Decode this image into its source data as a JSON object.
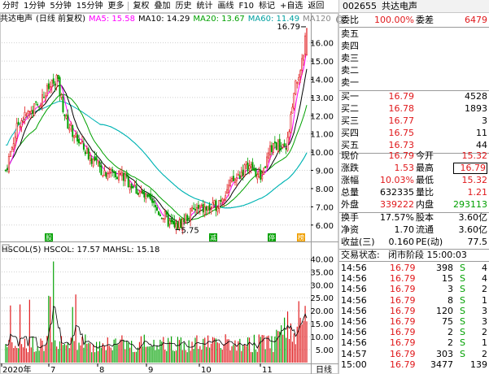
{
  "toolbar": {
    "items": [
      "分时",
      "1分钟",
      "5分钟",
      "15分钟",
      "更多",
      "复权",
      "叠加",
      "历史",
      "统计",
      "画线",
      "F10",
      "标记",
      "+自选",
      "返回"
    ]
  },
  "legend": {
    "stock_name": "共达电声",
    "mode": "(日线 前复权)",
    "ma5": "MA5: 15.58",
    "ma10": "MA10: 14.29",
    "ma20": "MA20: 13.67",
    "ma60": "MA60: 11.49",
    "ma120": "MA120",
    "ma120_icon": "circle-icon"
  },
  "sublegend": {
    "hscol5": "HSCOL(5)",
    "hscol": "HSCOL: 17.57",
    "mahsl": "MAHSL: 15.18"
  },
  "colors": {
    "ma5": "#ff00ff",
    "ma10": "#000000",
    "ma20": "#00a000",
    "ma60": "#00b4b4",
    "up": "#e0181b",
    "down": "#00a000",
    "markers": "#00a000"
  },
  "price_axis": [
    "16.00",
    "15.00",
    "14.00",
    "13.00",
    "12.00",
    "11.00",
    "10.00",
    "9.00",
    "8.00",
    "7.00",
    "6.00"
  ],
  "volume_axis": [
    "40.00",
    "35.00",
    "30.00",
    "25.00",
    "20.00",
    "15.00",
    "10.00",
    "5.00"
  ],
  "annotations": {
    "high": "16.79",
    "low": "5.75"
  },
  "markers": [
    "股",
    "减",
    "停",
    "榜"
  ],
  "date_axis": {
    "labels": [
      "2020年",
      "7",
      "8",
      "9",
      "10",
      "11"
    ],
    "period": "日线"
  },
  "quote": {
    "code": "002655",
    "name": "共达电声",
    "weibi_label": "委比",
    "weibi": "100.00%",
    "weicha_label": "委差",
    "weicha": "6479",
    "sells": [
      {
        "label": "卖五",
        "price": "",
        "vol": ""
      },
      {
        "label": "卖四",
        "price": "",
        "vol": ""
      },
      {
        "label": "卖三",
        "price": "",
        "vol": ""
      },
      {
        "label": "卖二",
        "price": "",
        "vol": ""
      },
      {
        "label": "卖一",
        "price": "",
        "vol": ""
      }
    ],
    "buys": [
      {
        "label": "买一",
        "price": "16.79",
        "vol": "4528"
      },
      {
        "label": "买二",
        "price": "16.78",
        "vol": "1893"
      },
      {
        "label": "买三",
        "price": "16.77",
        "vol": "3"
      },
      {
        "label": "买四",
        "price": "16.75",
        "vol": "11"
      },
      {
        "label": "买五",
        "price": "16.73",
        "vol": "44"
      }
    ],
    "stats": [
      {
        "l1": "现价",
        "v1": "16.79",
        "c1": "red",
        "l2": "今开",
        "v2": "15.32",
        "c2": "red"
      },
      {
        "l1": "涨跌",
        "v1": "1.53",
        "c1": "red",
        "l2": "最高",
        "v2": "16.79",
        "c2": "red"
      },
      {
        "l1": "涨幅",
        "v1": "10.03%",
        "c1": "red",
        "l2": "最低",
        "v2": "15.32",
        "c2": "red"
      },
      {
        "l1": "总量",
        "v1": "632335",
        "c1": "black",
        "l2": "量比",
        "v2": "1.21",
        "c2": "red"
      },
      {
        "l1": "外盘",
        "v1": "339222",
        "c1": "red",
        "l2": "内盘",
        "v2": "293113",
        "c2": "green"
      }
    ],
    "stats2": [
      {
        "l1": "换手",
        "v1": "17.57%",
        "l2": "股本",
        "v2": "3.60亿"
      },
      {
        "l1": "净资",
        "v1": "1.70",
        "l2": "流通",
        "v2": "3.60亿"
      },
      {
        "l1": "收益(三)",
        "v1": "0.160",
        "l2": "PE(动)",
        "v2": "77.5"
      }
    ],
    "status_label": "交易状态:",
    "status": "闭市阶段 15:00:03",
    "ticks": [
      {
        "time": "14:56",
        "price": "16.79",
        "vol": "398",
        "side": "S",
        "n": "4"
      },
      {
        "time": "14:56",
        "price": "16.79",
        "vol": "15",
        "side": "S",
        "n": "4"
      },
      {
        "time": "14:56",
        "price": "16.79",
        "vol": "3",
        "side": "S",
        "n": "2"
      },
      {
        "time": "14:56",
        "price": "16.79",
        "vol": "8",
        "side": "S",
        "n": "1"
      },
      {
        "time": "14:56",
        "price": "16.79",
        "vol": "120",
        "side": "S",
        "n": "3"
      },
      {
        "time": "14:56",
        "price": "16.79",
        "vol": "75",
        "side": "S",
        "n": "3"
      },
      {
        "time": "14:56",
        "price": "16.79",
        "vol": "2",
        "side": "S",
        "n": "2"
      },
      {
        "time": "14:56",
        "price": "16.79",
        "vol": "2",
        "side": "S",
        "n": "1"
      },
      {
        "time": "14:57",
        "price": "16.79",
        "vol": "303",
        "side": "S",
        "n": "2"
      },
      {
        "time": "15:00",
        "price": "16.79",
        "vol": "3477",
        "side": "",
        "n": "139"
      }
    ]
  }
}
